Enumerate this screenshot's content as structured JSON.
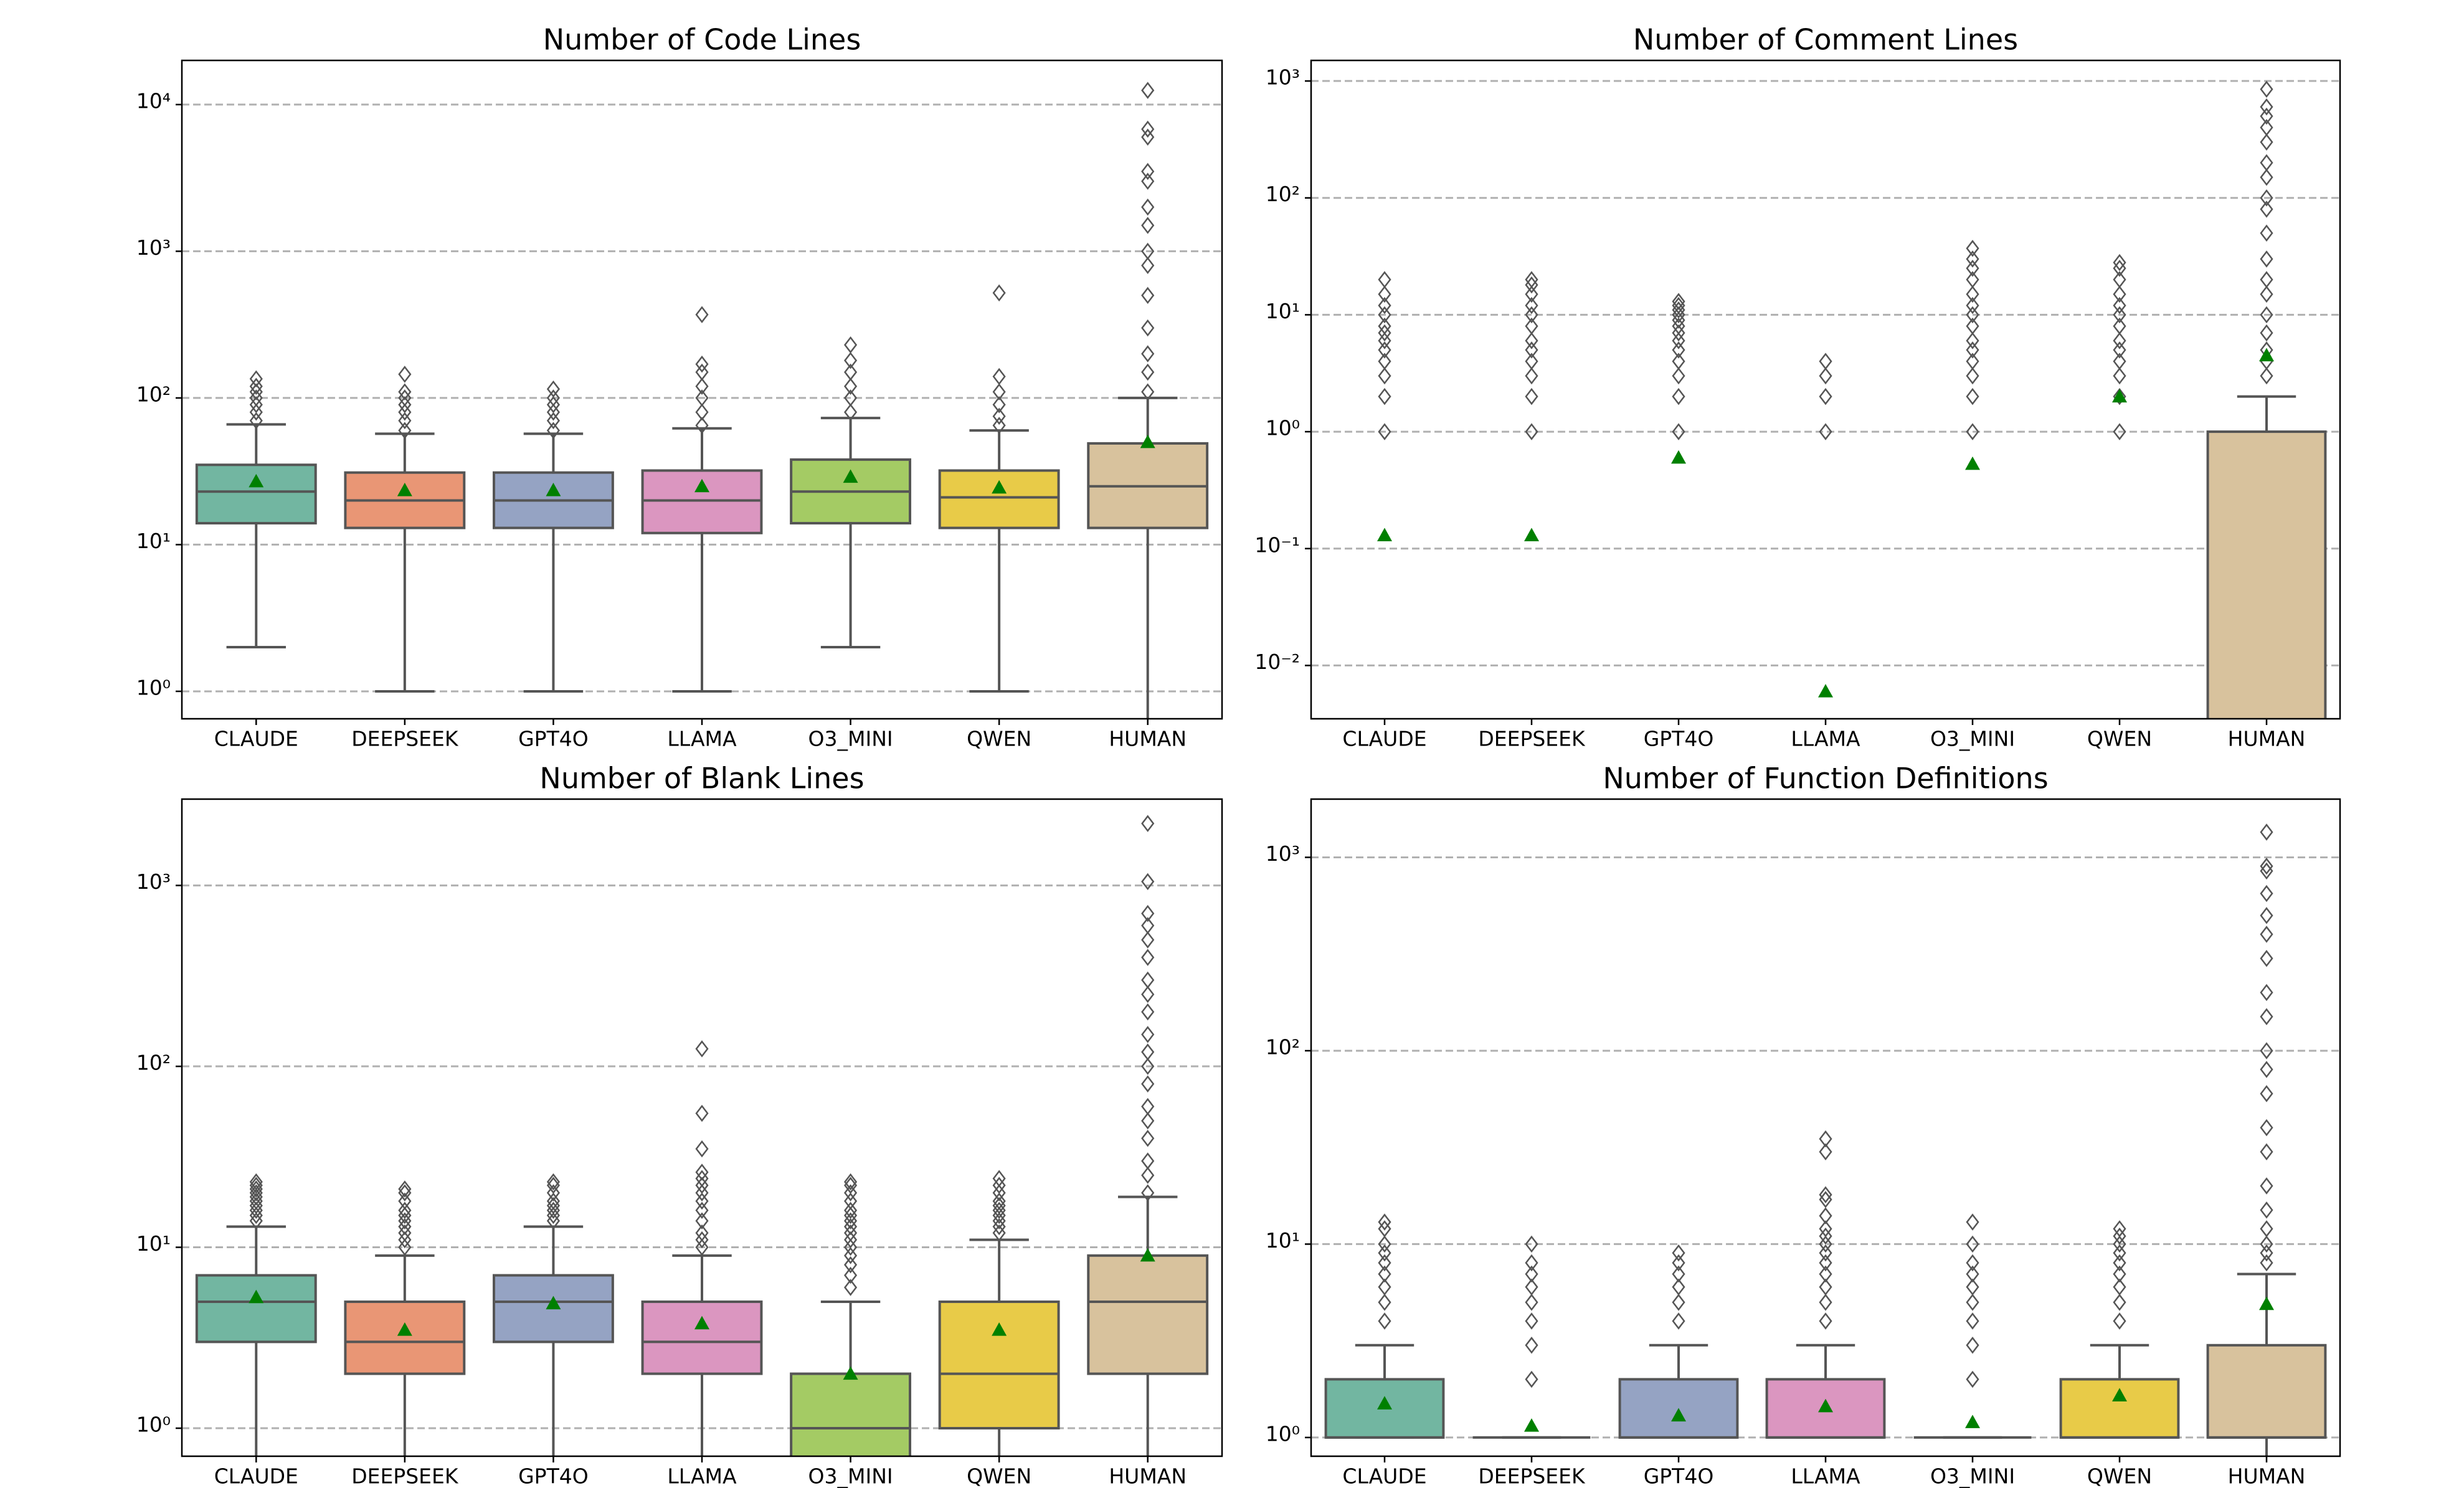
{
  "chart_data": [
    {
      "type": "box",
      "title": "Number of Code Lines",
      "log_scale": true,
      "grid": true,
      "mean_color": "green",
      "categories": [
        "CLAUDE",
        "DEEPSEEK",
        "GPT4O",
        "LLAMA",
        "O3_MINI",
        "QWEN",
        "HUMAN"
      ],
      "colors": [
        "#72b6a1",
        "#e99675",
        "#95a3c3",
        "#db96c0",
        "#a4cb64",
        "#e8cb48",
        "#d8c29d"
      ],
      "ylim": [
        0.65,
        20000
      ],
      "yticks": [
        {
          "value": 1,
          "label": "10⁰"
        },
        {
          "value": 10,
          "label": "10¹"
        },
        {
          "value": 100,
          "label": "10²"
        },
        {
          "value": 1000,
          "label": "10³"
        },
        {
          "value": 10000,
          "label": "10⁴"
        }
      ],
      "boxes": [
        {
          "q1": 14,
          "median": 23,
          "q3": 35,
          "whislo": 2,
          "whishi": 66,
          "mean": 27,
          "fliers": [
            70,
            80,
            90,
            100,
            110,
            120,
            135
          ]
        },
        {
          "q1": 13,
          "median": 20,
          "q3": 31,
          "whislo": 1,
          "whishi": 57,
          "mean": 23.5,
          "fliers": [
            60,
            70,
            80,
            90,
            100,
            110,
            145
          ]
        },
        {
          "q1": 13,
          "median": 20,
          "q3": 31,
          "whislo": 1,
          "whishi": 57,
          "mean": 23.5,
          "fliers": [
            60,
            70,
            80,
            90,
            100,
            115
          ]
        },
        {
          "q1": 12,
          "median": 20,
          "q3": 32,
          "whislo": 1,
          "whishi": 62,
          "mean": 25,
          "fliers": [
            65,
            80,
            100,
            120,
            150,
            170,
            370
          ]
        },
        {
          "q1": 14,
          "median": 23,
          "q3": 38,
          "whislo": 2,
          "whishi": 73,
          "mean": 29,
          "fliers": [
            80,
            100,
            120,
            150,
            180,
            230
          ]
        },
        {
          "q1": 13,
          "median": 21,
          "q3": 32,
          "whislo": 1,
          "whishi": 60,
          "mean": 24.5,
          "fliers": [
            65,
            75,
            90,
            110,
            140,
            520
          ]
        },
        {
          "q1": 13,
          "median": 25,
          "q3": 49,
          "whislo": 0,
          "whishi": 100,
          "mean": 50,
          "fliers": [
            110,
            150,
            200,
            300,
            500,
            800,
            1000,
            1500,
            2000,
            3000,
            3500,
            6000,
            6800,
            12500
          ]
        }
      ]
    },
    {
      "type": "box",
      "title": "Number of Comment Lines",
      "log_scale": true,
      "grid": true,
      "mean_color": "green",
      "categories": [
        "CLAUDE",
        "DEEPSEEK",
        "GPT4O",
        "LLAMA",
        "O3_MINI",
        "QWEN",
        "HUMAN"
      ],
      "colors": [
        "#72b6a1",
        "#e99675",
        "#95a3c3",
        "#db96c0",
        "#a4cb64",
        "#e8cb48",
        "#d8c29d"
      ],
      "ylim": [
        0.0035,
        1500
      ],
      "yticks": [
        {
          "value": 0.01,
          "label": "10⁻²"
        },
        {
          "value": 0.1,
          "label": "10⁻¹"
        },
        {
          "value": 1,
          "label": "10⁰"
        },
        {
          "value": 10,
          "label": "10¹"
        },
        {
          "value": 100,
          "label": "10²"
        },
        {
          "value": 1000,
          "label": "10³"
        }
      ],
      "boxes": [
        {
          "q1": 0,
          "median": 0,
          "q3": 0,
          "whislo": 0,
          "whishi": 0,
          "mean": 0.13,
          "fliers": [
            1,
            2,
            3,
            4,
            5,
            6,
            7,
            8,
            10,
            12,
            15,
            20
          ]
        },
        {
          "q1": 0,
          "median": 0,
          "q3": 0,
          "whislo": 0,
          "whishi": 0,
          "mean": 0.13,
          "fliers": [
            1,
            2,
            3,
            4,
            5,
            6,
            8,
            10,
            12,
            15,
            18,
            20
          ]
        },
        {
          "q1": 0,
          "median": 0,
          "q3": 0,
          "whislo": 0,
          "whishi": 0,
          "mean": 0.6,
          "fliers": [
            1,
            2,
            3,
            4,
            5,
            6,
            7,
            8,
            9,
            10,
            11,
            12,
            13
          ]
        },
        {
          "q1": 0,
          "median": 0,
          "q3": 0,
          "whislo": 0,
          "whishi": 0,
          "mean": 0.006,
          "fliers": [
            1,
            2,
            3,
            4
          ]
        },
        {
          "q1": 0,
          "median": 0,
          "q3": 0,
          "whislo": 0,
          "whishi": 0,
          "mean": 0.53,
          "fliers": [
            1,
            2,
            3,
            4,
            5,
            6,
            8,
            10,
            12,
            15,
            20,
            25,
            30,
            37
          ]
        },
        {
          "q1": 0,
          "median": 0,
          "q3": 0,
          "whislo": 0,
          "whishi": 0,
          "mean": 2,
          "fliers": [
            1,
            2,
            3,
            4,
            5,
            6,
            8,
            10,
            12,
            15,
            20,
            25,
            28
          ]
        },
        {
          "q1": 0,
          "median": 0,
          "q3": 1,
          "whislo": 0,
          "whishi": 2,
          "mean": 4.5,
          "fliers": [
            3,
            4,
            5,
            7,
            10,
            15,
            20,
            30,
            50,
            80,
            100,
            150,
            200,
            300,
            400,
            500,
            600,
            850
          ]
        }
      ]
    },
    {
      "type": "box",
      "title": "Number of Blank Lines",
      "log_scale": true,
      "grid": true,
      "mean_color": "green",
      "categories": [
        "CLAUDE",
        "DEEPSEEK",
        "GPT4O",
        "LLAMA",
        "O3_MINI",
        "QWEN",
        "HUMAN"
      ],
      "colors": [
        "#72b6a1",
        "#e99675",
        "#95a3c3",
        "#db96c0",
        "#a4cb64",
        "#e8cb48",
        "#d8c29d"
      ],
      "ylim": [
        0.7,
        3000
      ],
      "yticks": [
        {
          "value": 1,
          "label": "10⁰"
        },
        {
          "value": 10,
          "label": "10¹"
        },
        {
          "value": 100,
          "label": "10²"
        },
        {
          "value": 1000,
          "label": "10³"
        }
      ],
      "boxes": [
        {
          "q1": 3,
          "median": 5,
          "q3": 7,
          "whislo": 0,
          "whishi": 13,
          "mean": 5.3,
          "fliers": [
            14,
            15,
            16,
            17,
            18,
            19,
            20,
            21,
            22,
            23
          ]
        },
        {
          "q1": 2,
          "median": 3,
          "q3": 5,
          "whislo": 0,
          "whishi": 9,
          "mean": 3.5,
          "fliers": [
            10,
            11,
            12,
            13,
            14,
            15,
            16,
            18,
            20,
            21
          ]
        },
        {
          "q1": 3,
          "median": 5,
          "q3": 7,
          "whislo": 0,
          "whishi": 13,
          "mean": 4.9,
          "fliers": [
            14,
            15,
            16,
            17,
            18,
            20,
            22,
            23
          ]
        },
        {
          "q1": 2,
          "median": 3,
          "q3": 5,
          "whislo": 0,
          "whishi": 9,
          "mean": 3.8,
          "fliers": [
            10,
            11,
            12,
            14,
            16,
            18,
            20,
            22,
            24,
            26,
            35,
            55,
            125
          ]
        },
        {
          "q1": 0,
          "median": 1,
          "q3": 2,
          "whislo": 0,
          "whishi": 5,
          "mean": 2,
          "fliers": [
            6,
            7,
            8,
            9,
            10,
            11,
            12,
            13,
            14,
            15,
            16,
            18,
            20,
            22,
            23
          ]
        },
        {
          "q1": 1,
          "median": 2,
          "q3": 5,
          "whislo": 0,
          "whishi": 11,
          "mean": 3.5,
          "fliers": [
            12,
            13,
            14,
            15,
            16,
            17,
            18,
            20,
            22,
            24
          ]
        },
        {
          "q1": 2,
          "median": 5,
          "q3": 9,
          "whislo": 0,
          "whishi": 19,
          "mean": 9,
          "fliers": [
            20,
            25,
            30,
            40,
            50,
            60,
            80,
            100,
            120,
            150,
            200,
            250,
            300,
            400,
            500,
            600,
            700,
            1050,
            2200
          ]
        }
      ]
    },
    {
      "type": "box",
      "title": "Number of Function Definitions",
      "log_scale": true,
      "grid": true,
      "mean_color": "green",
      "categories": [
        "CLAUDE",
        "DEEPSEEK",
        "GPT4O",
        "LLAMA",
        "O3_MINI",
        "QWEN",
        "HUMAN"
      ],
      "colors": [
        "#72b6a1",
        "#e99675",
        "#95a3c3",
        "#db96c0",
        "#a4cb64",
        "#e8cb48",
        "#d8c29d"
      ],
      "ylim": [
        0.8,
        2000
      ],
      "yticks": [
        {
          "value": 1,
          "label": "10⁰"
        },
        {
          "value": 10,
          "label": "10¹"
        },
        {
          "value": 100,
          "label": "10²"
        },
        {
          "value": 1000,
          "label": "10³"
        }
      ],
      "boxes": [
        {
          "q1": 1,
          "median": 1,
          "q3": 2,
          "whislo": 1,
          "whishi": 3,
          "mean": 1.5,
          "fliers": [
            4,
            5,
            6,
            7,
            8,
            9,
            10,
            12,
            13
          ]
        },
        {
          "q1": 1,
          "median": 1,
          "q3": 1,
          "whislo": 1,
          "whishi": 1,
          "mean": 1.15,
          "fliers": [
            2,
            3,
            4,
            5,
            6,
            7,
            8,
            10
          ]
        },
        {
          "q1": 1,
          "median": 1,
          "q3": 2,
          "whislo": 1,
          "whishi": 3,
          "mean": 1.3,
          "fliers": [
            4,
            5,
            6,
            7,
            8,
            9
          ]
        },
        {
          "q1": 1,
          "median": 1,
          "q3": 2,
          "whislo": 1,
          "whishi": 3,
          "mean": 1.45,
          "fliers": [
            4,
            5,
            6,
            7,
            8,
            9,
            10,
            11,
            12,
            14,
            17,
            18,
            30,
            35
          ]
        },
        {
          "q1": 1,
          "median": 1,
          "q3": 1,
          "whislo": 1,
          "whishi": 1,
          "mean": 1.2,
          "fliers": [
            2,
            3,
            4,
            5,
            6,
            7,
            8,
            10,
            13
          ]
        },
        {
          "q1": 1,
          "median": 1,
          "q3": 2,
          "whislo": 1,
          "whishi": 3,
          "mean": 1.65,
          "fliers": [
            4,
            5,
            6,
            7,
            8,
            9,
            10,
            11,
            12
          ]
        },
        {
          "q1": 1,
          "median": 1,
          "q3": 3,
          "whislo": 0,
          "whishi": 7,
          "mean": 4.9,
          "fliers": [
            8,
            9,
            10,
            12,
            15,
            20,
            30,
            40,
            60,
            80,
            100,
            150,
            200,
            300,
            400,
            500,
            650,
            850,
            900,
            1350
          ]
        }
      ]
    }
  ]
}
